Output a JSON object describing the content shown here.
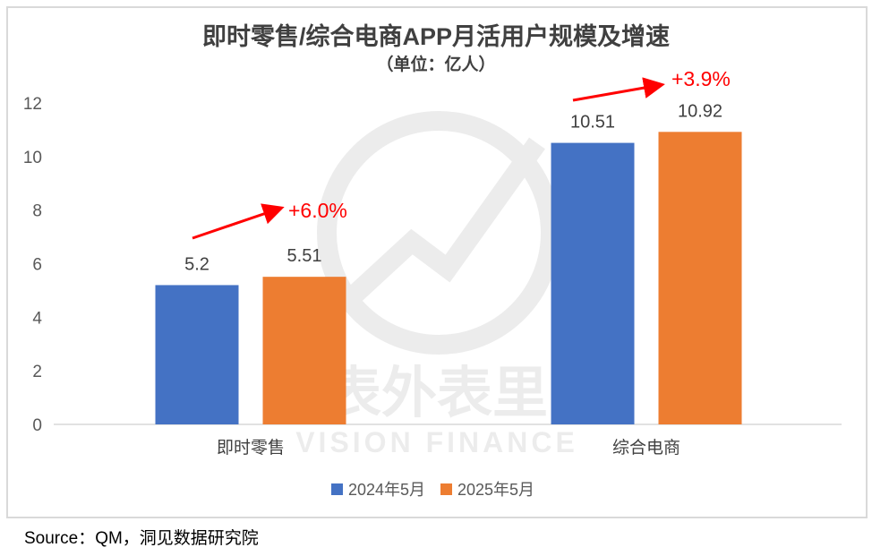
{
  "chart_data": {
    "type": "bar",
    "title": "即时零售/综合电商APP月活用户规模及增速",
    "subtitle": "（单位：亿人）",
    "categories": [
      "即时零售",
      "综合电商"
    ],
    "series": [
      {
        "name": "2024年5月",
        "values": [
          5.2,
          10.51
        ],
        "labels": [
          "5.2",
          "10.51"
        ],
        "color": "#4472c4"
      },
      {
        "name": "2025年5月",
        "values": [
          5.51,
          10.92
        ],
        "labels": [
          "5.51",
          "10.92"
        ],
        "color": "#ed7d31"
      }
    ],
    "ylim": [
      0,
      12
    ],
    "yticks": [
      "0",
      "2",
      "4",
      "6",
      "8",
      "10",
      "12"
    ],
    "grid": false,
    "legend": "bottom",
    "annotations": [
      {
        "category": "即时零售",
        "text": "+6.0%",
        "color": "#ff0000"
      },
      {
        "category": "综合电商",
        "text": "+3.9%",
        "color": "#ff0000"
      }
    ]
  },
  "watermark": {
    "cn": "表外表里",
    "en": "VISION FINANCE"
  },
  "source": "Source：QM，洞见数据研究院"
}
